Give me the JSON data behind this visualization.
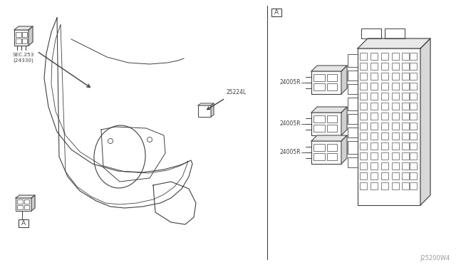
{
  "bg_color": "#ffffff",
  "line_color": "#404040",
  "text_color": "#404040",
  "title_code": "J25200W4",
  "box_label_A": "A",
  "sec_label": "SEC.253\n(24330)",
  "part_label_25224": "25224L",
  "relay_labels": [
    "24005R",
    "24005R",
    "24005R"
  ],
  "font_size_small": 5.5,
  "font_size_code": 6.0
}
